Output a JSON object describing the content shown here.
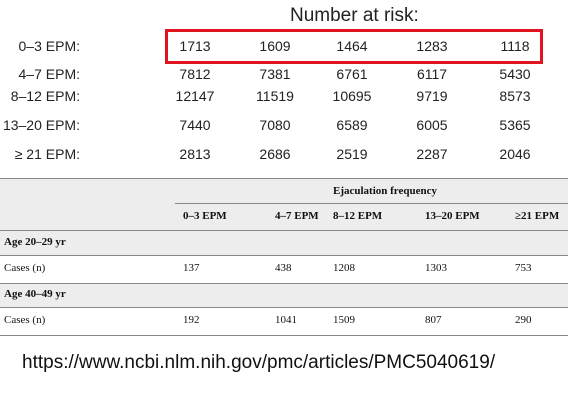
{
  "risk_table": {
    "title": "Number at risk:",
    "rows": [
      {
        "label": "0–3 EPM:",
        "values": [
          1713,
          1609,
          1464,
          1283,
          1118
        ]
      },
      {
        "label": "4–7 EPM:",
        "values": [
          7812,
          7381,
          6761,
          6117,
          5430
        ]
      },
      {
        "label": "8–12 EPM:",
        "values": [
          12147,
          11519,
          10695,
          9719,
          8573
        ]
      },
      {
        "label": "13–20 EPM:",
        "values": [
          7440,
          7080,
          6589,
          6005,
          5365
        ]
      },
      {
        "label": "≥ 21 EPM:",
        "values": [
          2813,
          2686,
          2519,
          2287,
          2046
        ]
      }
    ]
  },
  "cases_table": {
    "group_header": "Ejaculation frequency",
    "columns": [
      "0–3 EPM",
      "4–7 EPM",
      "8–12 EPM",
      "13–20 EPM",
      "≥21 EPM"
    ],
    "sections": [
      {
        "label": "Age 20–29 yr",
        "rows": [
          {
            "label": "Cases (n)",
            "values": [
              137,
              438,
              1208,
              1303,
              753
            ]
          }
        ]
      },
      {
        "label": "Age 40–49 yr",
        "rows": [
          {
            "label": "Cases (n)",
            "values": [
              192,
              1041,
              1509,
              807,
              290
            ]
          }
        ]
      }
    ]
  },
  "url": "https://www.ncbi.nlm.nih.gov/pmc/articles/PMC5040619/"
}
